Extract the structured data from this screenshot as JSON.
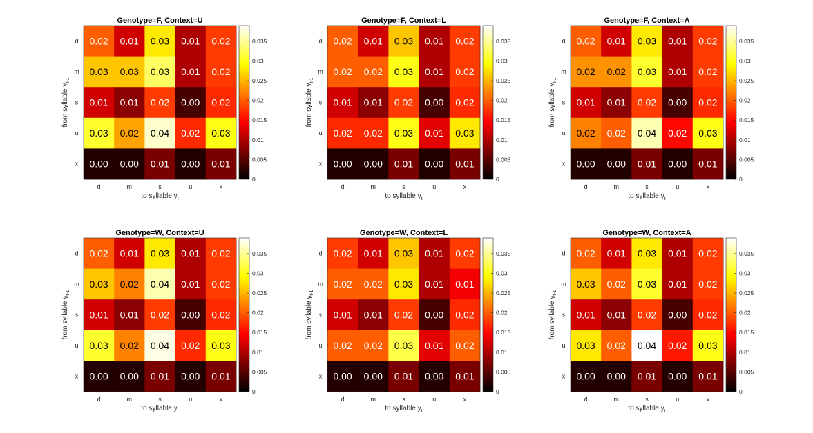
{
  "figure": {
    "colormap": "hot"
  },
  "chart_data": [
    {
      "type": "heatmap",
      "title": "Genotype=F, Context=U",
      "xlabel": "to syllable y",
      "xlabel_sub": "t",
      "ylabel": "from syllable y",
      "ylabel_sub": "t-1",
      "x_categories": [
        "d",
        "m",
        "s",
        "u",
        "x"
      ],
      "y_categories": [
        "d",
        "m",
        "s",
        "u",
        "x"
      ],
      "values": [
        [
          0.02,
          0.012,
          0.028,
          0.01,
          0.018
        ],
        [
          0.026,
          0.026,
          0.033,
          0.01,
          0.018
        ],
        [
          0.012,
          0.008,
          0.018,
          0.004,
          0.017
        ],
        [
          0.031,
          0.024,
          0.037,
          0.017,
          0.03
        ],
        [
          0.002,
          0.002,
          0.007,
          0.002,
          0.007
        ]
      ],
      "cell_labels": [
        [
          "0.02",
          "0.01",
          "0.03",
          "0.01",
          "0.02"
        ],
        [
          "0.03",
          "0.03",
          "0.03",
          "0.01",
          "0.02"
        ],
        [
          "0.01",
          "0.01",
          "0.02",
          "0.00",
          "0.02"
        ],
        [
          "0.03",
          "0.02",
          "0.04",
          "0.02",
          "0.03"
        ],
        [
          "0.00",
          "0.00",
          "0.01",
          "0.00",
          "0.01"
        ]
      ],
      "clim": [
        0,
        0.039
      ],
      "colorbar_ticks": [
        0,
        0.005,
        0.01,
        0.015,
        0.02,
        0.025,
        0.03,
        0.035
      ],
      "colorbar_tick_labels": [
        "0",
        "0.005",
        "0.01",
        "0.015",
        "0.02",
        "0.025",
        "0.03",
        "0.035"
      ]
    },
    {
      "type": "heatmap",
      "title": "Genotype=F, Context=L",
      "xlabel": "to syllable y",
      "xlabel_sub": "t",
      "ylabel": "from syllable y",
      "ylabel_sub": "t-1",
      "x_categories": [
        "d",
        "m",
        "s",
        "u",
        "x"
      ],
      "y_categories": [
        "d",
        "m",
        "s",
        "u",
        "x"
      ],
      "values": [
        [
          0.02,
          0.012,
          0.026,
          0.01,
          0.018
        ],
        [
          0.02,
          0.02,
          0.03,
          0.01,
          0.018
        ],
        [
          0.012,
          0.008,
          0.018,
          0.004,
          0.017
        ],
        [
          0.017,
          0.017,
          0.03,
          0.013,
          0.028
        ],
        [
          0.002,
          0.002,
          0.007,
          0.002,
          0.007
        ]
      ],
      "cell_labels": [
        [
          "0.02",
          "0.01",
          "0.03",
          "0.01",
          "0.02"
        ],
        [
          "0.02",
          "0.02",
          "0.03",
          "0.01",
          "0.02"
        ],
        [
          "0.01",
          "0.01",
          "0.02",
          "0.00",
          "0.02"
        ],
        [
          "0.02",
          "0.02",
          "0.03",
          "0.01",
          "0.03"
        ],
        [
          "0.00",
          "0.00",
          "0.01",
          "0.00",
          "0.01"
        ]
      ],
      "clim": [
        0,
        0.039
      ],
      "colorbar_ticks": [
        0,
        0.005,
        0.01,
        0.015,
        0.02,
        0.025,
        0.03,
        0.035
      ],
      "colorbar_tick_labels": [
        "0",
        "0.005",
        "0.01",
        "0.015",
        "0.02",
        "0.025",
        "0.03",
        "0.035"
      ]
    },
    {
      "type": "heatmap",
      "title": "Genotype=F, Context=A",
      "xlabel": "to syllable y",
      "xlabel_sub": "t",
      "ylabel": "from syllable y",
      "ylabel_sub": "t-1",
      "x_categories": [
        "d",
        "m",
        "s",
        "u",
        "x"
      ],
      "y_categories": [
        "d",
        "m",
        "s",
        "u",
        "x"
      ],
      "values": [
        [
          0.02,
          0.012,
          0.028,
          0.01,
          0.018
        ],
        [
          0.023,
          0.023,
          0.031,
          0.01,
          0.018
        ],
        [
          0.012,
          0.008,
          0.018,
          0.004,
          0.017
        ],
        [
          0.022,
          0.02,
          0.036,
          0.015,
          0.03
        ],
        [
          0.002,
          0.002,
          0.007,
          0.002,
          0.007
        ]
      ],
      "cell_labels": [
        [
          "0.02",
          "0.01",
          "0.03",
          "0.01",
          "0.02"
        ],
        [
          "0.02",
          "0.02",
          "0.03",
          "0.01",
          "0.02"
        ],
        [
          "0.01",
          "0.01",
          "0.02",
          "0.00",
          "0.02"
        ],
        [
          "0.02",
          "0.02",
          "0.04",
          "0.02",
          "0.03"
        ],
        [
          "0.00",
          "0.00",
          "0.01",
          "0.00",
          "0.01"
        ]
      ],
      "clim": [
        0,
        0.039
      ],
      "colorbar_ticks": [
        0,
        0.005,
        0.01,
        0.015,
        0.02,
        0.025,
        0.03,
        0.035
      ],
      "colorbar_tick_labels": [
        "0",
        "0.005",
        "0.01",
        "0.015",
        "0.02",
        "0.025",
        "0.03",
        "0.035"
      ]
    },
    {
      "type": "heatmap",
      "title": "Genotype=W, Context=U",
      "xlabel": "to syllable y",
      "xlabel_sub": "t",
      "ylabel": "from syllable y",
      "ylabel_sub": "t-1",
      "x_categories": [
        "d",
        "m",
        "s",
        "u",
        "x"
      ],
      "y_categories": [
        "d",
        "m",
        "s",
        "u",
        "x"
      ],
      "values": [
        [
          0.02,
          0.012,
          0.028,
          0.01,
          0.018
        ],
        [
          0.026,
          0.022,
          0.036,
          0.01,
          0.018
        ],
        [
          0.012,
          0.008,
          0.018,
          0.004,
          0.017
        ],
        [
          0.031,
          0.022,
          0.038,
          0.017,
          0.03
        ],
        [
          0.002,
          0.002,
          0.007,
          0.002,
          0.007
        ]
      ],
      "cell_labels": [
        [
          "0.02",
          "0.01",
          "0.03",
          "0.01",
          "0.02"
        ],
        [
          "0.03",
          "0.02",
          "0.04",
          "0.01",
          "0.02"
        ],
        [
          "0.01",
          "0.01",
          "0.02",
          "0.00",
          "0.02"
        ],
        [
          "0.03",
          "0.02",
          "0.04",
          "0.02",
          "0.03"
        ],
        [
          "0.00",
          "0.00",
          "0.01",
          "0.00",
          "0.01"
        ]
      ],
      "clim": [
        0,
        0.039
      ],
      "colorbar_ticks": [
        0,
        0.005,
        0.01,
        0.015,
        0.02,
        0.025,
        0.03,
        0.035
      ],
      "colorbar_tick_labels": [
        "0",
        "0.005",
        "0.01",
        "0.015",
        "0.02",
        "0.025",
        "0.03",
        "0.035"
      ]
    },
    {
      "type": "heatmap",
      "title": "Genotype=W, Context=L",
      "xlabel": "to syllable y",
      "xlabel_sub": "t",
      "ylabel": "from syllable y",
      "ylabel_sub": "t-1",
      "x_categories": [
        "d",
        "m",
        "s",
        "u",
        "x"
      ],
      "y_categories": [
        "d",
        "m",
        "s",
        "u",
        "x"
      ],
      "values": [
        [
          0.018,
          0.012,
          0.026,
          0.01,
          0.018
        ],
        [
          0.02,
          0.02,
          0.028,
          0.01,
          0.014
        ],
        [
          0.012,
          0.008,
          0.018,
          0.004,
          0.017
        ],
        [
          0.02,
          0.02,
          0.032,
          0.013,
          0.02
        ],
        [
          0.002,
          0.002,
          0.007,
          0.002,
          0.007
        ]
      ],
      "cell_labels": [
        [
          "0.02",
          "0.01",
          "0.03",
          "0.01",
          "0.02"
        ],
        [
          "0.02",
          "0.02",
          "0.03",
          "0.01",
          "0.01"
        ],
        [
          "0.01",
          "0.01",
          "0.02",
          "0.00",
          "0.02"
        ],
        [
          "0.02",
          "0.02",
          "0.03",
          "0.01",
          "0.02"
        ],
        [
          "0.00",
          "0.00",
          "0.01",
          "0.00",
          "0.01"
        ]
      ],
      "clim": [
        0,
        0.039
      ],
      "colorbar_ticks": [
        0,
        0.005,
        0.01,
        0.015,
        0.02,
        0.025,
        0.03,
        0.035
      ],
      "colorbar_tick_labels": [
        "0",
        "0.005",
        "0.01",
        "0.015",
        "0.02",
        "0.025",
        "0.03",
        "0.035"
      ]
    },
    {
      "type": "heatmap",
      "title": "Genotype=W, Context=A",
      "xlabel": "to syllable y",
      "xlabel_sub": "t",
      "ylabel": "from syllable y",
      "ylabel_sub": "t-1",
      "x_categories": [
        "d",
        "m",
        "s",
        "u",
        "x"
      ],
      "y_categories": [
        "d",
        "m",
        "s",
        "u",
        "x"
      ],
      "values": [
        [
          0.02,
          0.012,
          0.028,
          0.01,
          0.018
        ],
        [
          0.026,
          0.02,
          0.031,
          0.01,
          0.018
        ],
        [
          0.012,
          0.008,
          0.018,
          0.004,
          0.017
        ],
        [
          0.028,
          0.02,
          0.039,
          0.016,
          0.03
        ],
        [
          0.002,
          0.002,
          0.007,
          0.002,
          0.007
        ]
      ],
      "cell_labels": [
        [
          "0.02",
          "0.01",
          "0.03",
          "0.01",
          "0.02"
        ],
        [
          "0.03",
          "0.02",
          "0.03",
          "0.01",
          "0.02"
        ],
        [
          "0.01",
          "0.01",
          "0.02",
          "0.00",
          "0.02"
        ],
        [
          "0.03",
          "0.02",
          "0.04",
          "0.02",
          "0.03"
        ],
        [
          "0.00",
          "0.00",
          "0.01",
          "0.00",
          "0.01"
        ]
      ],
      "clim": [
        0,
        0.039
      ],
      "colorbar_ticks": [
        0,
        0.005,
        0.01,
        0.015,
        0.02,
        0.025,
        0.03,
        0.035
      ],
      "colorbar_tick_labels": [
        "0",
        "0.005",
        "0.01",
        "0.015",
        "0.02",
        "0.025",
        "0.03",
        "0.035"
      ]
    }
  ]
}
